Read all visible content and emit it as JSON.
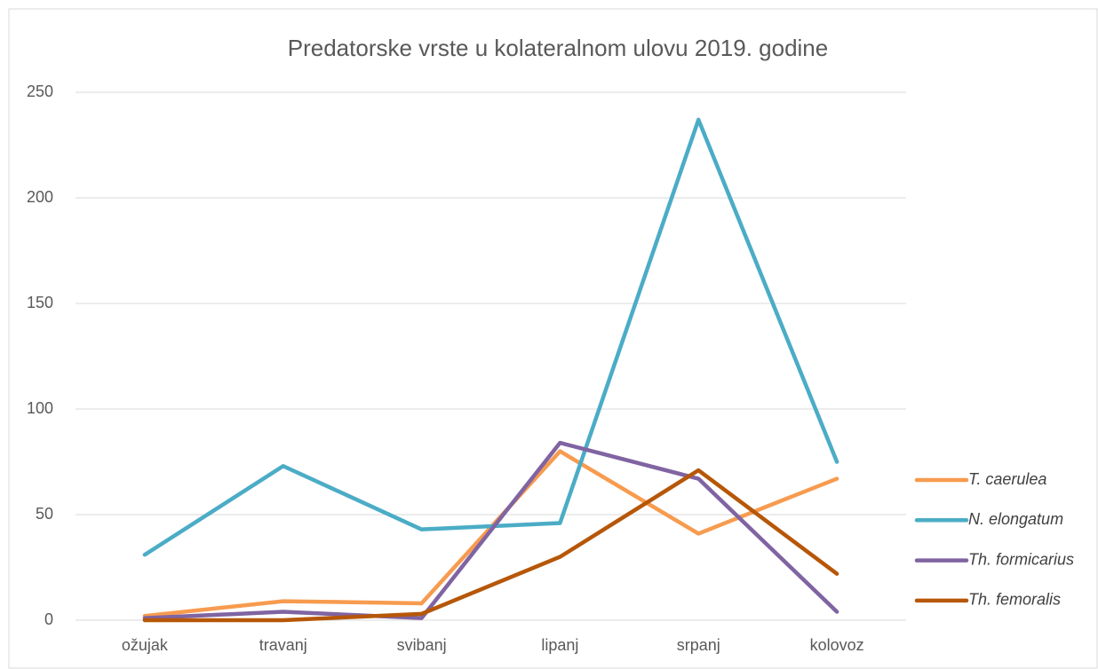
{
  "chart_data": {
    "type": "line",
    "title": "Predatorske vrste u kolateralnom ulovu 2019. godine",
    "categories": [
      "ožujak",
      "travanj",
      "svibanj",
      "lipanj",
      "srpanj",
      "kolovoz"
    ],
    "series": [
      {
        "name": "T. caerulea",
        "color": "#f79b4f",
        "values": [
          2,
          9,
          8,
          80,
          41,
          67
        ]
      },
      {
        "name": "N. elongatum",
        "color": "#4bacc6",
        "values": [
          31,
          73,
          43,
          46,
          237,
          75
        ]
      },
      {
        "name": "Th. formicarius",
        "color": "#8064a2",
        "values": [
          1,
          4,
          1,
          84,
          67,
          4
        ]
      },
      {
        "name": "Th. femoralis",
        "color": "#b65708",
        "values": [
          0,
          0,
          3,
          30,
          71,
          22
        ]
      }
    ],
    "ylim": [
      0,
      250
    ],
    "yticks": [
      0,
      50,
      100,
      150,
      200,
      250
    ],
    "grid": true,
    "legend": "right"
  }
}
